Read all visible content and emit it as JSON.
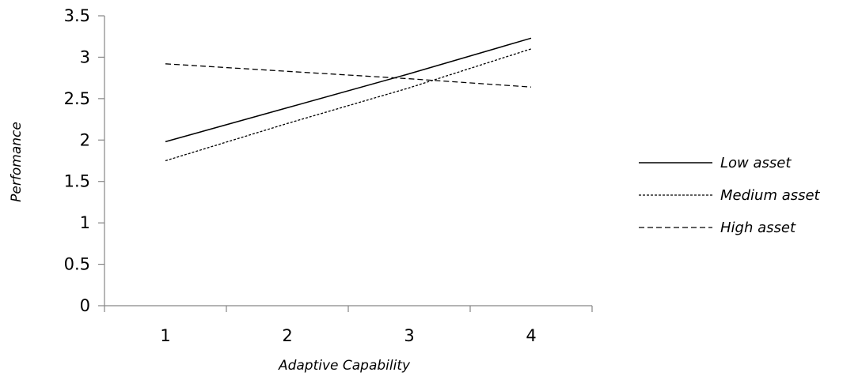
{
  "chart_data": {
    "type": "line",
    "title": "",
    "xlabel": "Adaptive Capability",
    "ylabel": "Perfomance",
    "x": [
      1,
      2,
      3,
      4
    ],
    "xlim": [
      0.5,
      4.5
    ],
    "ylim": [
      0,
      3.5
    ],
    "yticks": [
      0,
      0.5,
      1,
      1.5,
      2,
      2.5,
      3,
      3.5
    ],
    "ytick_labels": [
      "0",
      "0.5",
      "1",
      "1.5",
      "2",
      "2.5",
      "3",
      "3.5"
    ],
    "xticks": [
      1,
      2,
      3,
      4
    ],
    "xtick_labels": [
      "1",
      "2",
      "3",
      "4"
    ],
    "grid": false,
    "legend_position": "right",
    "series": [
      {
        "name": "Low asset",
        "values": [
          1.98,
          2.39,
          2.8,
          3.23
        ],
        "style": "solid",
        "color": "#000000"
      },
      {
        "name": "Medium asset",
        "values": [
          1.75,
          2.2,
          2.63,
          3.1
        ],
        "style": "dotted",
        "color": "#000000"
      },
      {
        "name": "High asset",
        "values": [
          2.92,
          2.83,
          2.74,
          2.64
        ],
        "style": "dashed",
        "color": "#000000"
      }
    ]
  }
}
